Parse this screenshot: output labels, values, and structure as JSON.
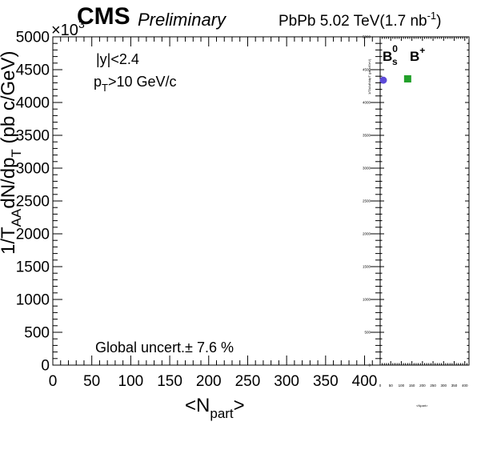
{
  "header": {
    "experiment": "CMS",
    "status": "Preliminary",
    "collision": "PbPb 5.02 TeV",
    "lumi_open": "(1.7 nb",
    "lumi_exp": "-1",
    "lumi_close": ")"
  },
  "annotations": {
    "rapidity": "|y|<2.4",
    "pt_main": "p",
    "pt_sub": "T",
    "pt_rest": ">10 GeV/c",
    "global_uncert": "Global uncert.± 7.6 %",
    "exp_base": "×10",
    "exp_power": "3"
  },
  "axes": {
    "ylabel_main": "1/T",
    "ylabel_sub1": "AA",
    "ylabel_mid": "dN/dp",
    "ylabel_sub2": "T",
    "ylabel_unit": " (pb c/GeV)",
    "xlabel_open": "<N",
    "xlabel_sub": "part",
    "xlabel_close": ">"
  },
  "legend": {
    "bs_base": "B",
    "bs_sub": "s",
    "bs_sup": "0",
    "bplus_base": "B",
    "bplus_sup": "+"
  },
  "colors": {
    "bs_marker": "#5c4ad8",
    "bplus_marker": "#22a02a",
    "axis": "#000000"
  },
  "chart_data": [
    {
      "type": "scatter",
      "title": "",
      "xlabel": "<N_part>",
      "ylabel": "1/T_AA dN/dp_T (pb c/GeV)",
      "xlim": [
        0,
        420
      ],
      "ylim": [
        0,
        5000
      ],
      "y_multiplier": "×10^3",
      "x_ticks": [
        0,
        50,
        100,
        150,
        200,
        250,
        300,
        350,
        400
      ],
      "y_ticks": [
        0,
        500,
        1000,
        1500,
        2000,
        2500,
        3000,
        3500,
        4000,
        4500,
        5000
      ],
      "series": []
    },
    {
      "type": "scatter",
      "title": "",
      "xlabel": "<N_part>",
      "ylabel": "1/T_AA dN/dp_T (pb c/GeV)",
      "xlim": [
        0,
        420
      ],
      "ylim": [
        0,
        5000
      ],
      "x_ticks": [
        0,
        50,
        100,
        150,
        200,
        250,
        300,
        350,
        400
      ],
      "y_ticks": [
        0,
        500,
        1000,
        1500,
        2000,
        2500,
        3000,
        3500,
        4000,
        4500,
        5000
      ],
      "series": [
        {
          "name": "Bs0",
          "marker": "circle",
          "x": [
            15
          ],
          "y": [
            4340
          ]
        },
        {
          "name": "B+",
          "marker": "square",
          "x": [
            130
          ],
          "y": [
            4360
          ]
        }
      ]
    }
  ]
}
